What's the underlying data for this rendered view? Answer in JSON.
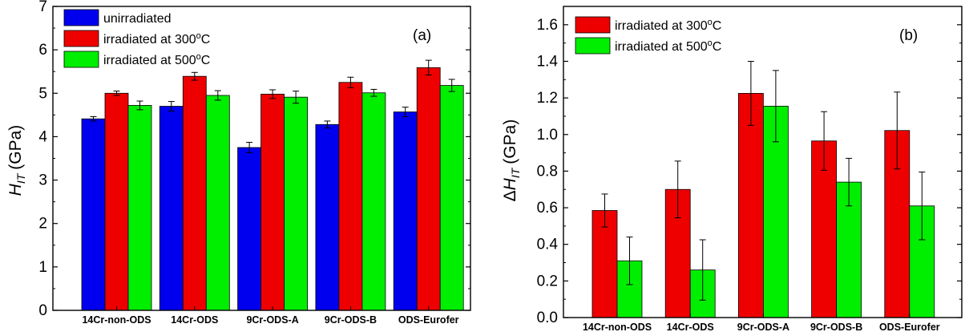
{
  "colors": {
    "unirradiated": "#0000ee",
    "irr300": "#ee0000",
    "irr500": "#00ee00"
  },
  "chart_data": [
    {
      "type": "bar",
      "panel_label": "(a)",
      "ylabel_main": "H",
      "ylabel_sub": "IT",
      "ylabel_unit": "(GPa)",
      "ylim": [
        0,
        7
      ],
      "yticks": [
        "0",
        "1",
        "2",
        "3",
        "4",
        "5",
        "6",
        "7"
      ],
      "legend_position": "top-left",
      "categories": [
        "14Cr-non-ODS",
        "14Cr-ODS",
        "9Cr-ODS-A",
        "9Cr-ODS-B",
        "ODS-Eurofer"
      ],
      "series": [
        {
          "name": "unirradiated",
          "color": "#0000ee",
          "values": [
            4.41,
            4.7,
            3.75,
            4.28,
            4.57
          ],
          "errors": [
            0.05,
            0.11,
            0.12,
            0.08,
            0.11
          ]
        },
        {
          "name_main": "irradiated at 300",
          "name_sup": "o",
          "name_end": "C",
          "color": "#ee0000",
          "values": [
            5.0,
            5.39,
            4.98,
            5.25,
            5.59
          ],
          "errors": [
            0.05,
            0.09,
            0.1,
            0.12,
            0.17
          ]
        },
        {
          "name_main": "irradiated at 500",
          "name_sup": "o",
          "name_end": "C",
          "color": "#00ee00",
          "values": [
            4.72,
            4.95,
            4.91,
            5.01,
            5.18
          ],
          "errors": [
            0.1,
            0.11,
            0.14,
            0.08,
            0.14
          ]
        }
      ]
    },
    {
      "type": "bar",
      "panel_label": "(b)",
      "ylabel_prefix": "Δ",
      "ylabel_main": "H",
      "ylabel_sub": "IT",
      "ylabel_unit": "(GPa)",
      "ylim": [
        0,
        1.7
      ],
      "yticks": [
        "0.0",
        "0.2",
        "0.4",
        "0.6",
        "0.8",
        "1.0",
        "1.2",
        "1.4",
        "1.6"
      ],
      "legend_position": "top-left",
      "categories": [
        "14Cr-non-ODS",
        "14Cr-ODS",
        "9Cr-ODS-A",
        "9Cr-ODS-B",
        "ODS-Eurofer"
      ],
      "series": [
        {
          "name_main": "irradiated at 300",
          "name_sup": "o",
          "name_end": "C",
          "color": "#ee0000",
          "values": [
            0.585,
            0.7,
            1.225,
            0.965,
            1.022
          ],
          "errors": [
            0.09,
            0.155,
            0.175,
            0.16,
            0.21
          ]
        },
        {
          "name_main": "irradiated at 500",
          "name_sup": "o",
          "name_end": "C",
          "color": "#00ee00",
          "values": [
            0.31,
            0.26,
            1.155,
            0.74,
            0.61
          ],
          "errors": [
            0.13,
            0.165,
            0.195,
            0.13,
            0.185
          ]
        }
      ]
    }
  ]
}
